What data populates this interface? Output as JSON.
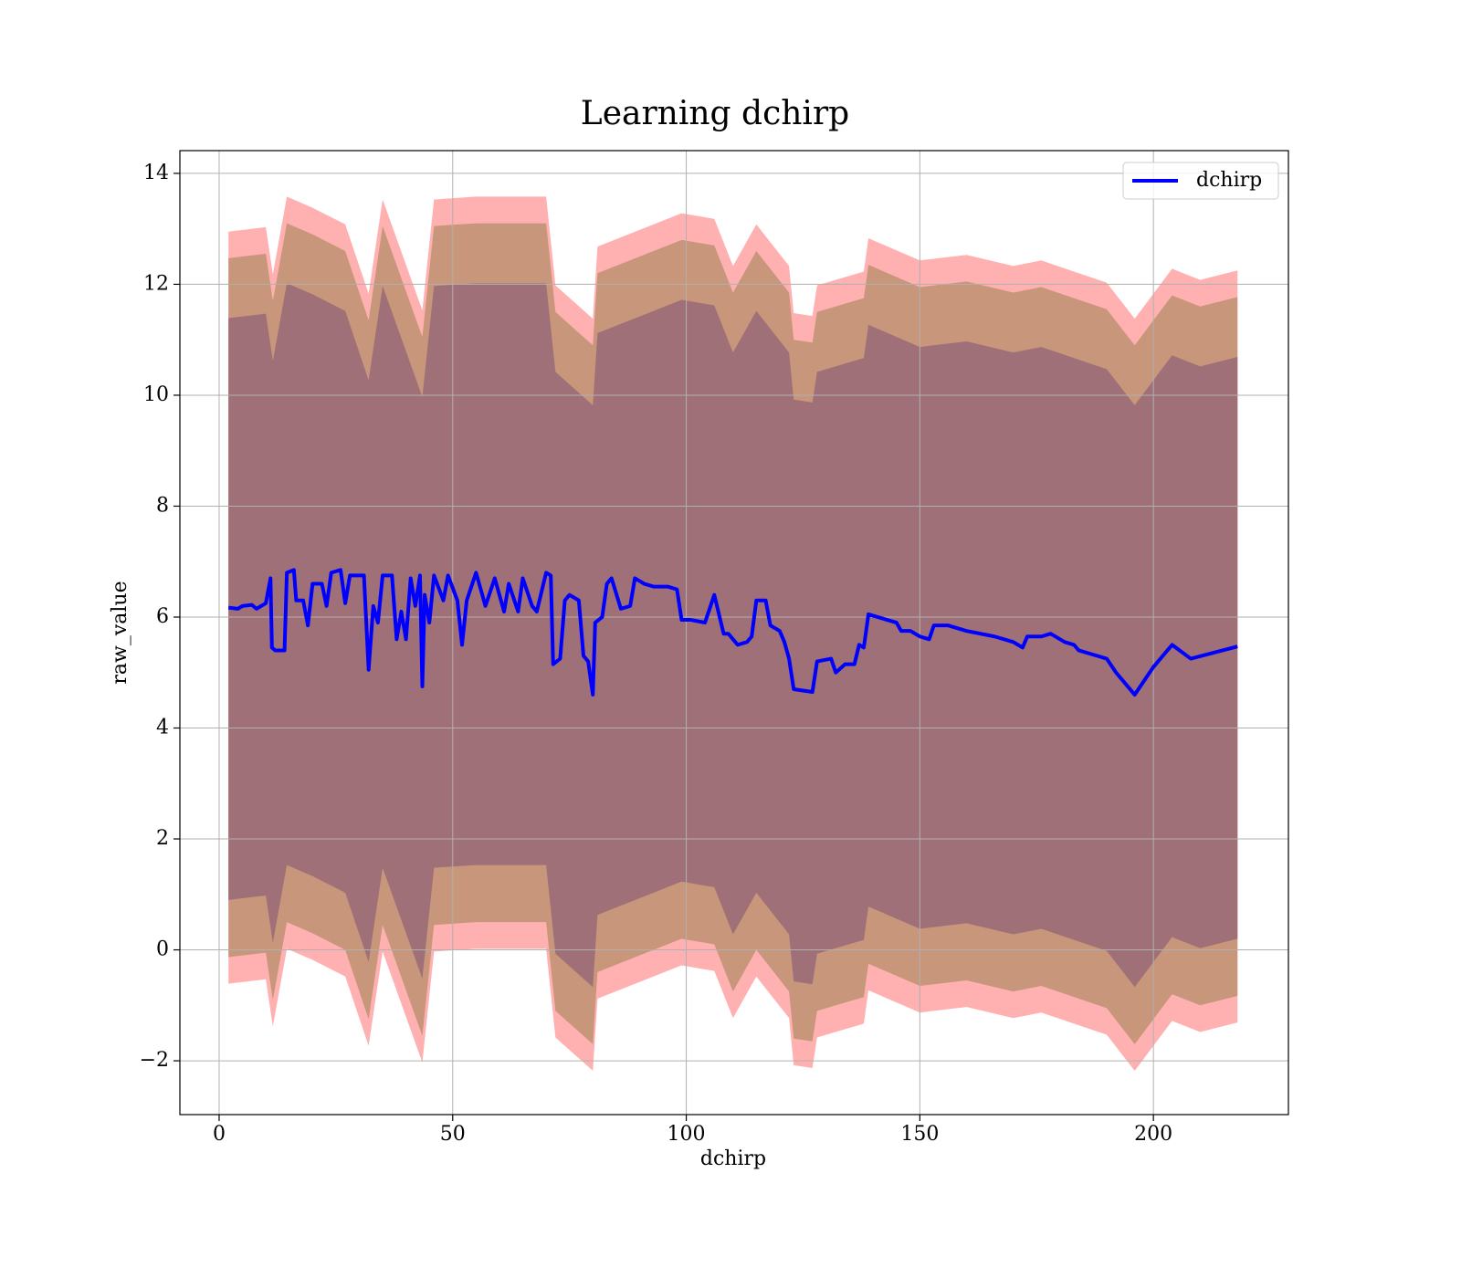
{
  "chart_data": {
    "type": "line",
    "title": "Learning dchirp",
    "xlabel": "dchirp",
    "ylabel": "raw_value",
    "xlim": [
      -8.4,
      228.9
    ],
    "ylim": [
      -2.97,
      14.41
    ],
    "xticks": [
      0,
      50,
      100,
      150,
      200
    ],
    "yticks": [
      {
        "value": -2,
        "label": "−2"
      },
      0,
      2,
      4,
      6,
      8,
      10,
      12,
      14
    ],
    "grid": true,
    "legend": "upper right",
    "series": [
      {
        "name": "dchirp",
        "color": "#0000ff",
        "x": [
          2,
          4,
          5,
          7,
          8,
          10,
          11,
          11.3,
          12,
          14,
          14.5,
          16,
          16.5,
          18,
          19,
          20,
          22,
          23,
          24,
          26,
          27,
          28,
          31,
          31.5,
          32,
          33,
          34,
          35,
          37,
          38,
          39,
          40,
          41,
          42,
          43,
          43.5,
          44,
          45,
          46,
          48,
          49,
          51,
          52,
          53,
          55,
          57,
          59,
          61,
          62,
          64,
          65,
          67,
          68,
          70,
          71,
          71.5,
          73,
          74,
          75,
          77,
          78,
          79,
          80,
          80.5,
          82,
          83,
          84,
          86,
          88,
          89,
          91,
          93,
          96,
          98,
          99,
          101,
          104,
          106,
          108,
          109,
          111,
          113,
          114,
          115,
          117,
          118,
          120,
          121,
          122,
          123,
          127,
          128,
          131,
          132,
          134,
          136,
          137,
          138,
          139,
          143,
          145,
          146,
          148,
          150,
          152,
          153,
          156,
          160,
          166,
          170,
          172,
          173,
          176,
          178,
          181,
          183,
          184,
          188,
          190,
          192,
          196,
          200,
          204,
          208,
          218
        ],
        "values": [
          6.17,
          6.15,
          6.2,
          6.22,
          6.15,
          6.25,
          6.7,
          5.45,
          5.4,
          5.4,
          6.8,
          6.85,
          6.3,
          6.3,
          5.85,
          6.6,
          6.6,
          6.2,
          6.8,
          6.85,
          6.25,
          6.75,
          6.75,
          5.9,
          5.05,
          6.2,
          5.9,
          6.75,
          6.75,
          5.6,
          6.1,
          5.6,
          6.7,
          6.2,
          6.75,
          4.75,
          6.4,
          5.9,
          6.75,
          6.3,
          6.75,
          6.3,
          5.5,
          6.3,
          6.8,
          6.2,
          6.7,
          6.1,
          6.6,
          6.1,
          6.7,
          6.2,
          6.1,
          6.8,
          6.75,
          5.15,
          5.25,
          6.3,
          6.4,
          6.3,
          5.3,
          5.2,
          4.6,
          5.9,
          6.0,
          6.6,
          6.7,
          6.15,
          6.2,
          6.7,
          6.6,
          6.55,
          6.55,
          6.5,
          5.95,
          5.95,
          5.9,
          6.4,
          5.7,
          5.7,
          5.5,
          5.55,
          5.65,
          6.3,
          6.3,
          5.85,
          5.75,
          5.55,
          5.25,
          4.7,
          4.65,
          5.2,
          5.25,
          5.0,
          5.15,
          5.15,
          5.5,
          5.45,
          6.05,
          5.95,
          5.9,
          5.75,
          5.75,
          5.65,
          5.6,
          5.85,
          5.85,
          5.75,
          5.65,
          5.55,
          5.45,
          5.65,
          5.65,
          5.7,
          5.55,
          5.5,
          5.4,
          5.3,
          5.25,
          5.0,
          4.6,
          5.1,
          5.5,
          5.25,
          5.47
        ]
      }
    ],
    "band_x": [
      2,
      10,
      11.5,
      14.5,
      20,
      27,
      32,
      35,
      43.5,
      46,
      55,
      70,
      72,
      80,
      81,
      99,
      106,
      110,
      115,
      122,
      123,
      127,
      128,
      138,
      139,
      150,
      160,
      170,
      176,
      190,
      196,
      204,
      210,
      218
    ],
    "bands": [
      {
        "color": "#ffb1b1",
        "upper": [
          12.95,
          13.03,
          12.18,
          13.58,
          13.38,
          13.08,
          11.83,
          13.53,
          11.53,
          13.53,
          13.58,
          13.58,
          11.98,
          11.38,
          12.68,
          13.28,
          13.18,
          12.33,
          13.08,
          12.33,
          11.48,
          11.43,
          11.98,
          12.23,
          12.83,
          12.43,
          12.53,
          12.33,
          12.43,
          12.03,
          11.38,
          12.28,
          12.08,
          12.25
        ],
        "lower": [
          -0.61,
          -0.53,
          -1.38,
          0.02,
          -0.18,
          -0.48,
          -1.73,
          -0.03,
          -2.03,
          -0.03,
          0.02,
          0.02,
          -1.58,
          -2.18,
          -0.88,
          -0.28,
          -0.38,
          -1.23,
          -0.48,
          -1.23,
          -2.08,
          -2.13,
          -1.58,
          -1.33,
          -0.73,
          -1.13,
          -1.03,
          -1.23,
          -1.13,
          -1.53,
          -2.18,
          -1.28,
          -1.48,
          -1.31
        ]
      },
      {
        "color": "#c8967a",
        "upper": [
          12.47,
          12.55,
          11.7,
          13.1,
          12.9,
          12.6,
          11.35,
          13.05,
          11.05,
          13.05,
          13.1,
          13.1,
          11.5,
          10.9,
          12.2,
          12.8,
          12.7,
          11.85,
          12.6,
          11.85,
          11.0,
          10.95,
          11.5,
          11.75,
          12.35,
          11.95,
          12.05,
          11.85,
          11.95,
          11.55,
          10.9,
          11.8,
          11.6,
          11.77
        ],
        "lower": [
          -0.13,
          -0.05,
          -0.9,
          0.5,
          0.3,
          0.0,
          -1.25,
          0.45,
          -1.55,
          0.45,
          0.5,
          0.5,
          -1.1,
          -1.7,
          -0.4,
          0.2,
          0.1,
          -0.75,
          0.0,
          -0.75,
          -1.6,
          -1.65,
          -1.1,
          -0.85,
          -0.25,
          -0.65,
          -0.55,
          -0.75,
          -0.65,
          -1.05,
          -1.7,
          -0.8,
          -1.0,
          -0.83
        ]
      },
      {
        "color": "#a07078",
        "upper": [
          11.39,
          11.47,
          10.62,
          12.02,
          11.82,
          11.52,
          10.27,
          11.97,
          9.97,
          11.97,
          12.02,
          12.02,
          10.42,
          9.82,
          11.12,
          11.72,
          11.62,
          10.77,
          11.52,
          10.77,
          9.92,
          9.87,
          10.42,
          10.67,
          11.27,
          10.87,
          10.97,
          10.77,
          10.87,
          10.47,
          9.82,
          10.72,
          10.52,
          10.69
        ],
        "lower": [
          0.9,
          0.98,
          0.13,
          1.53,
          1.33,
          1.03,
          -0.22,
          1.48,
          -0.52,
          1.48,
          1.53,
          1.53,
          -0.07,
          -0.67,
          0.63,
          1.23,
          1.13,
          0.28,
          1.03,
          0.28,
          -0.57,
          -0.62,
          -0.07,
          0.18,
          0.78,
          0.38,
          0.48,
          0.28,
          0.38,
          -0.02,
          -0.67,
          0.23,
          0.03,
          0.2
        ]
      }
    ]
  }
}
